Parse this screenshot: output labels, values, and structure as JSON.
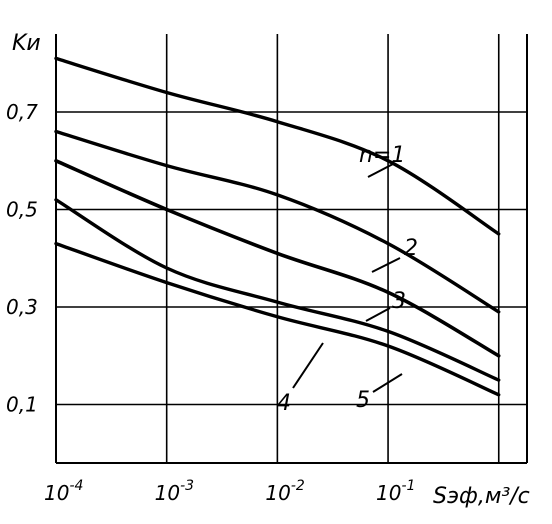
{
  "chart_data": {
    "type": "line",
    "title": "",
    "ylabel": "Kи",
    "xlabel": "Sэф,м³/с",
    "x_scale": "log",
    "x": [
      0.0001,
      0.001,
      0.01,
      0.1,
      1
    ],
    "x_tick_labels": [
      {
        "base": "10",
        "exp": "-4"
      },
      {
        "base": "10",
        "exp": "-3"
      },
      {
        "base": "10",
        "exp": "-2"
      },
      {
        "base": "10",
        "exp": "-1"
      }
    ],
    "y_ticks": [
      0.1,
      0.3,
      0.5,
      0.7
    ],
    "y_tick_labels": [
      "0,1",
      "0,3",
      "0,5",
      "0,7"
    ],
    "xlim": [
      0.0001,
      1.8
    ],
    "ylim": [
      -0.02,
      0.86
    ],
    "grid": true,
    "series": [
      {
        "name": "n=1",
        "values": [
          0.81,
          0.74,
          0.68,
          0.6,
          0.45
        ]
      },
      {
        "name": "2",
        "values": [
          0.66,
          0.59,
          0.53,
          0.43,
          0.29
        ]
      },
      {
        "name": "3",
        "values": [
          0.6,
          0.5,
          0.41,
          0.33,
          0.2
        ]
      },
      {
        "name": "4",
        "values": [
          0.52,
          0.38,
          0.31,
          0.25,
          0.15
        ]
      },
      {
        "name": "5",
        "values": [
          0.43,
          0.35,
          0.28,
          0.22,
          0.12
        ]
      }
    ]
  }
}
